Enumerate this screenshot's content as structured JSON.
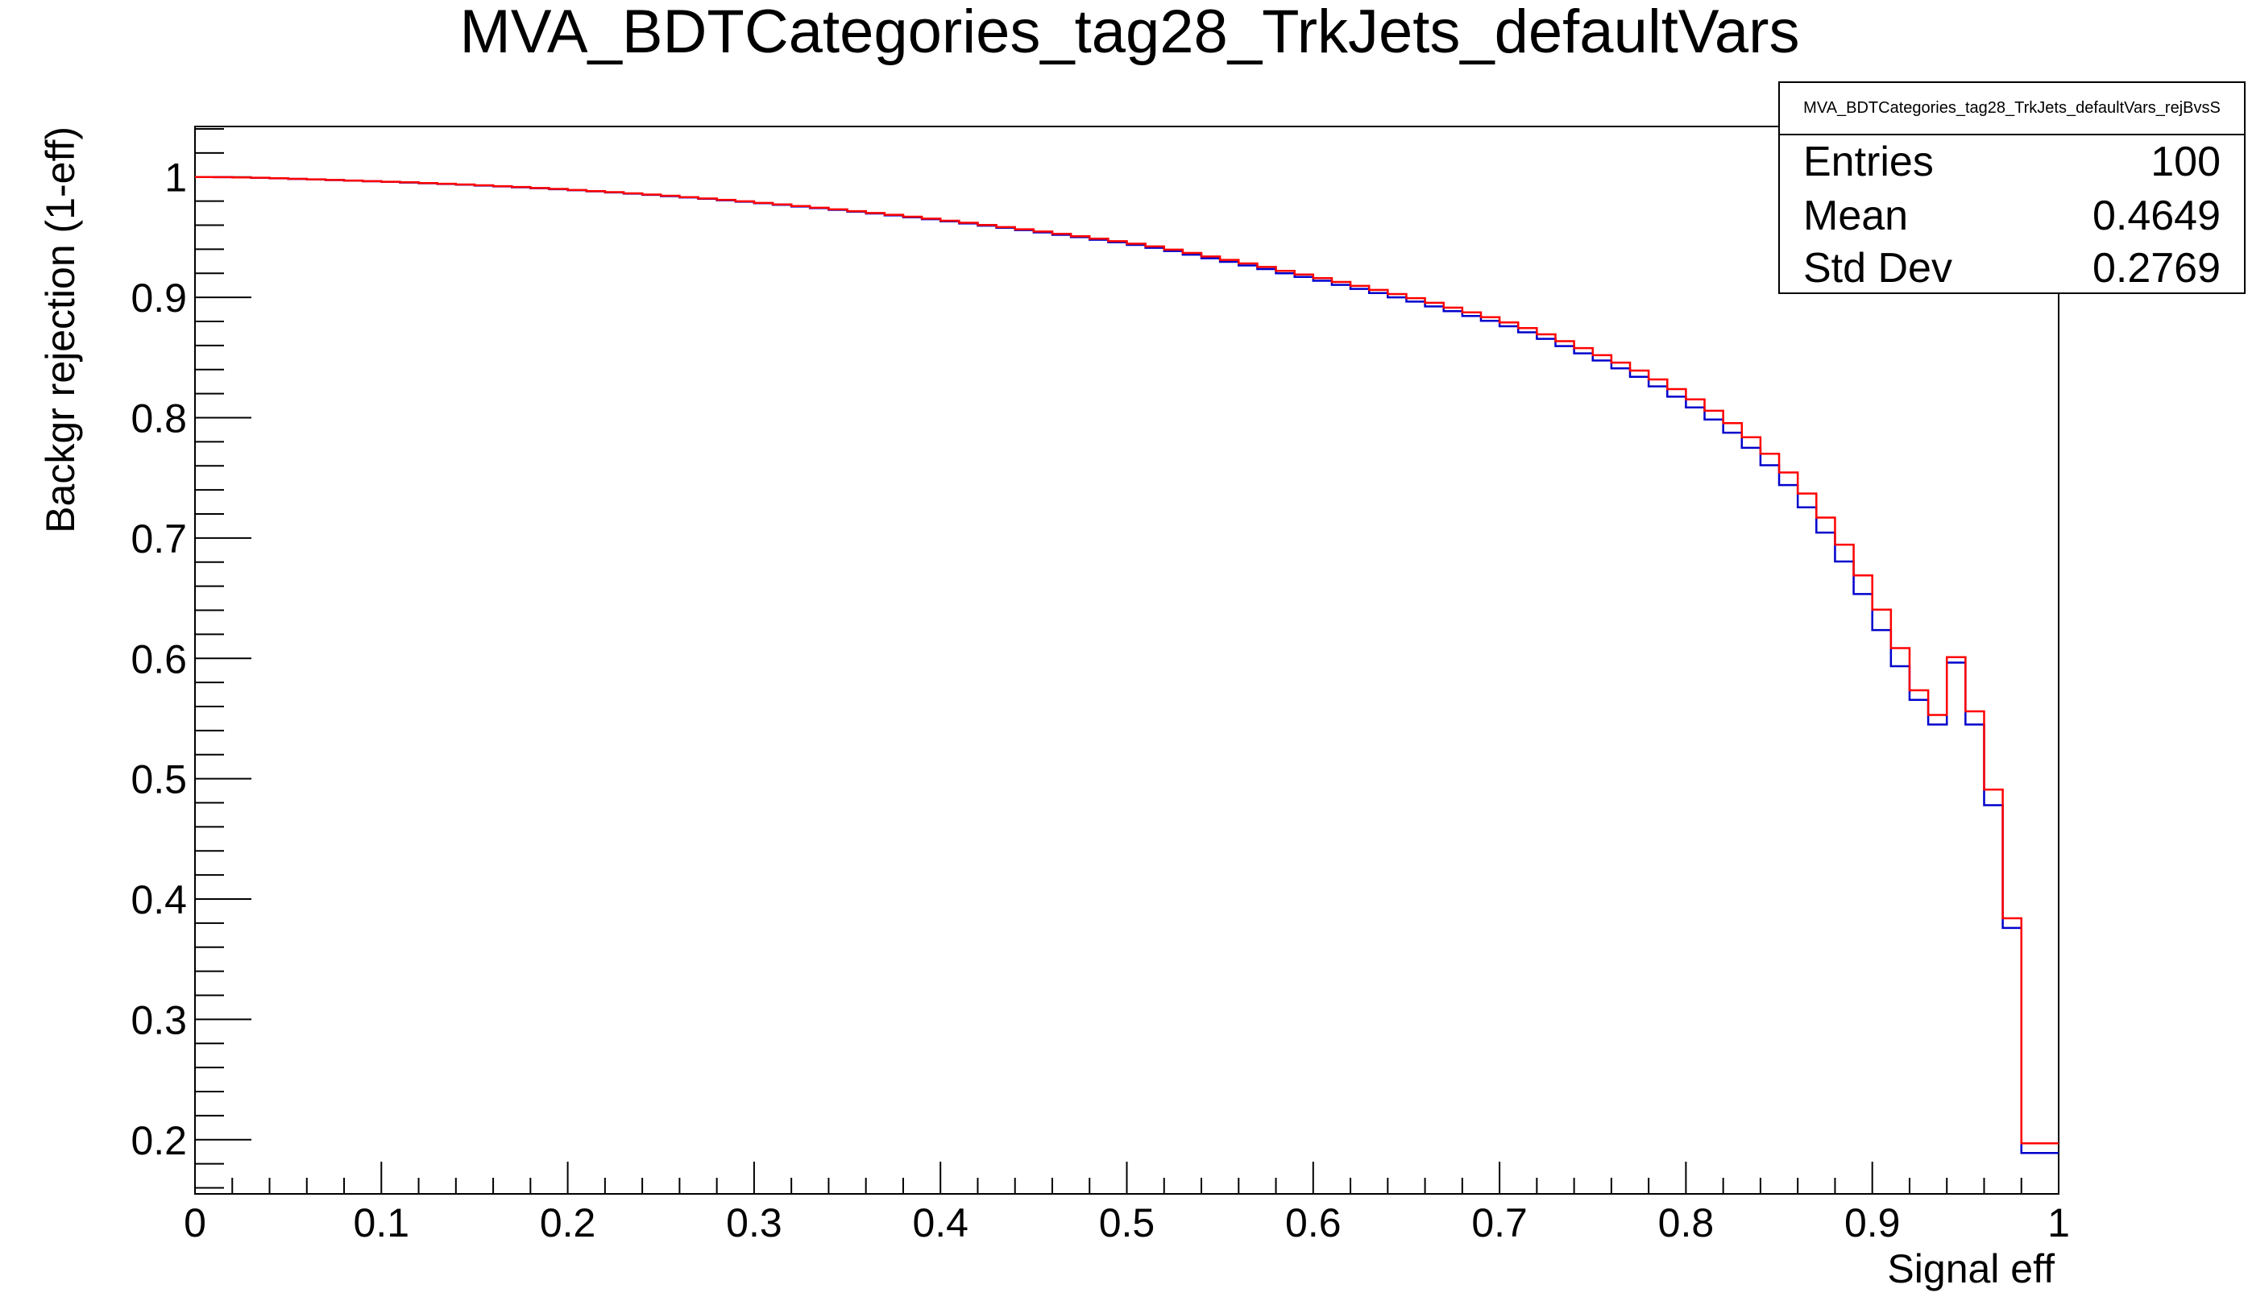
{
  "chart_data": {
    "type": "line",
    "title": "MVA_BDTCategories_tag28_TrkJets_defaultVars",
    "xlabel": "Signal eff",
    "ylabel": "Backgr rejection (1-eff)",
    "xlim": [
      0,
      1
    ],
    "ylim": [
      0.155,
      1.042
    ],
    "x_ticks": [
      0,
      0.1,
      0.2,
      0.3,
      0.4,
      0.5,
      0.6,
      0.7,
      0.8,
      0.9,
      1
    ],
    "x_tick_labels": [
      "0",
      "0.1",
      "0.2",
      "0.3",
      "0.4",
      "0.5",
      "0.6",
      "0.7",
      "0.8",
      "0.9",
      "1"
    ],
    "y_ticks": [
      0.2,
      0.3,
      0.4,
      0.5,
      0.6,
      0.7,
      0.8,
      0.9,
      1
    ],
    "y_tick_labels": [
      "0.2",
      "0.3",
      "0.4",
      "0.5",
      "0.6",
      "0.7",
      "0.8",
      "0.9",
      "1"
    ],
    "grid": false,
    "x": [
      0.005,
      0.015,
      0.025,
      0.035,
      0.045,
      0.055,
      0.065,
      0.075,
      0.085,
      0.095,
      0.105,
      0.115,
      0.125,
      0.135,
      0.145,
      0.155,
      0.165,
      0.175,
      0.185,
      0.195,
      0.205,
      0.215,
      0.225,
      0.235,
      0.245,
      0.255,
      0.265,
      0.275,
      0.285,
      0.295,
      0.305,
      0.315,
      0.325,
      0.335,
      0.345,
      0.355,
      0.365,
      0.375,
      0.385,
      0.395,
      0.405,
      0.415,
      0.425,
      0.435,
      0.445,
      0.455,
      0.465,
      0.475,
      0.485,
      0.495,
      0.505,
      0.515,
      0.525,
      0.535,
      0.545,
      0.555,
      0.565,
      0.575,
      0.585,
      0.595,
      0.605,
      0.615,
      0.625,
      0.635,
      0.645,
      0.655,
      0.665,
      0.675,
      0.685,
      0.695,
      0.705,
      0.715,
      0.725,
      0.735,
      0.745,
      0.755,
      0.765,
      0.775,
      0.785,
      0.795,
      0.805,
      0.815,
      0.825,
      0.835,
      0.845,
      0.855,
      0.865,
      0.875,
      0.885,
      0.895,
      0.905,
      0.915,
      0.925,
      0.935,
      0.945,
      0.955,
      0.965,
      0.975,
      0.985,
      0.995
    ],
    "series": [
      {
        "style": "histogram-step",
        "color": "#0000cc",
        "values": [
          1.0,
          0.9999,
          0.9997,
          0.9993,
          0.9989,
          0.9984,
          0.998,
          0.9975,
          0.997,
          0.9965,
          0.996,
          0.9954,
          0.9948,
          0.9942,
          0.9936,
          0.9929,
          0.9922,
          0.9915,
          0.9907,
          0.9899,
          0.989,
          0.9881,
          0.9872,
          0.9862,
          0.9852,
          0.9841,
          0.983,
          0.9819,
          0.9807,
          0.9795,
          0.9782,
          0.9769,
          0.9755,
          0.9741,
          0.9727,
          0.9712,
          0.9697,
          0.9681,
          0.9665,
          0.9649,
          0.9632,
          0.9614,
          0.9596,
          0.9578,
          0.9559,
          0.954,
          0.952,
          0.95,
          0.9479,
          0.9458,
          0.9436,
          0.9412,
          0.9385,
          0.9355,
          0.9325,
          0.9295,
          0.9265,
          0.9235,
          0.92,
          0.917,
          0.9138,
          0.9104,
          0.907,
          0.9036,
          0.9,
          0.8965,
          0.8925,
          0.8885,
          0.8845,
          0.8805,
          0.876,
          0.871,
          0.8655,
          0.8595,
          0.8535,
          0.8475,
          0.841,
          0.834,
          0.826,
          0.8175,
          0.8085,
          0.7985,
          0.7875,
          0.775,
          0.7605,
          0.744,
          0.7255,
          0.7045,
          0.6805,
          0.6535,
          0.6235,
          0.5935,
          0.5655,
          0.545,
          0.5965,
          0.545,
          0.478,
          0.376,
          0.189,
          0.189
        ]
      },
      {
        "style": "histogram-step",
        "color": "#ff0000",
        "values": [
          1.0,
          0.9999,
          0.9997,
          0.9994,
          0.999,
          0.9985,
          0.9981,
          0.9976,
          0.9971,
          0.9966,
          0.9961,
          0.9956,
          0.995,
          0.9944,
          0.9938,
          0.9931,
          0.9924,
          0.9917,
          0.9909,
          0.9901,
          0.9892,
          0.9883,
          0.9874,
          0.9864,
          0.9854,
          0.9844,
          0.9833,
          0.9822,
          0.981,
          0.9798,
          0.9785,
          0.9772,
          0.9759,
          0.9745,
          0.9731,
          0.9716,
          0.9701,
          0.9686,
          0.967,
          0.9654,
          0.9637,
          0.962,
          0.9602,
          0.9584,
          0.9566,
          0.9547,
          0.9528,
          0.9508,
          0.9488,
          0.9467,
          0.9446,
          0.9423,
          0.9397,
          0.9369,
          0.934,
          0.9311,
          0.9282,
          0.9253,
          0.922,
          0.919,
          0.916,
          0.9128,
          0.9095,
          0.9062,
          0.9028,
          0.8993,
          0.8955,
          0.8915,
          0.8875,
          0.8835,
          0.8792,
          0.8745,
          0.8693,
          0.8636,
          0.8578,
          0.852,
          0.8458,
          0.8392,
          0.8318,
          0.8238,
          0.8152,
          0.8058,
          0.7955,
          0.7838,
          0.77,
          0.7545,
          0.737,
          0.717,
          0.6945,
          0.669,
          0.6405,
          0.6085,
          0.5735,
          0.553,
          0.601,
          0.556,
          0.491,
          0.384,
          0.197,
          0.197
        ]
      }
    ]
  },
  "stats_box": {
    "name": "MVA_BDTCategories_tag28_TrkJets_defaultVars_rejBvsS",
    "rows": [
      {
        "label": "Entries",
        "value": "100"
      },
      {
        "label": "Mean",
        "value": "0.4649"
      },
      {
        "label": "Std Dev",
        "value": "0.2769"
      }
    ]
  }
}
